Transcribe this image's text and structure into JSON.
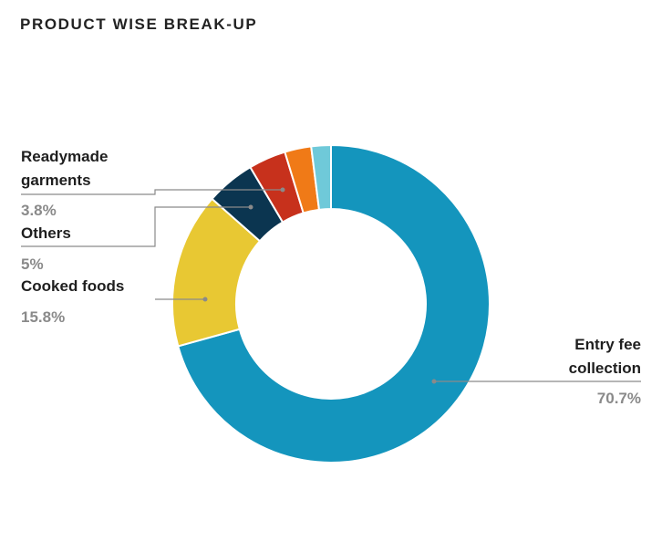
{
  "header": {
    "title": "PRODUCT WISE BREAK-UP"
  },
  "chart_data": {
    "type": "donut",
    "title": "PRODUCT WISE BREAK-UP",
    "series": [
      {
        "name": "Entry fee collection",
        "value": 70.7,
        "value_label": "70.7%",
        "label_lines": [
          "Entry fee",
          "collection"
        ],
        "color": "#1495bd"
      },
      {
        "name": "Cooked foods",
        "value": 15.8,
        "value_label": "15.8%",
        "label_lines": [
          "Cooked foods"
        ],
        "color": "#e8c833"
      },
      {
        "name": "Others",
        "value": 5,
        "value_label": "5%",
        "label_lines": [
          "Others"
        ],
        "color": "#0b3550"
      },
      {
        "name": "Readymade garments",
        "value": 3.8,
        "value_label": "3.8%",
        "label_lines": [
          "Readymade",
          "garments"
        ],
        "color": "#c7311c"
      },
      {
        "name": "",
        "value": 2.7,
        "color": "#f07a17"
      },
      {
        "name": "",
        "value": 2.0,
        "color": "#6fc9d9"
      }
    ]
  }
}
